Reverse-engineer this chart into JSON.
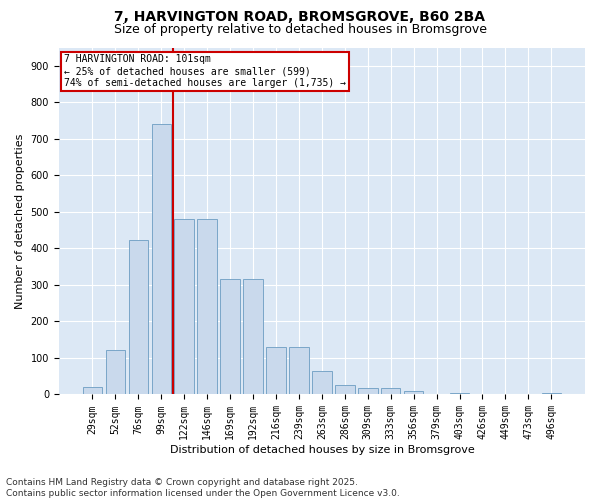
{
  "title_line1": "7, HARVINGTON ROAD, BROMSGROVE, B60 2BA",
  "title_line2": "Size of property relative to detached houses in Bromsgrove",
  "xlabel": "Distribution of detached houses by size in Bromsgrove",
  "ylabel": "Number of detached properties",
  "bar_color": "#c9d9ec",
  "bar_edge_color": "#7aa6c8",
  "background_color": "#dce8f5",
  "annotation_text": "7 HARVINGTON ROAD: 101sqm\n← 25% of detached houses are smaller (599)\n74% of semi-detached houses are larger (1,735) →",
  "vline_color": "#cc0000",
  "annotation_box_color": "white",
  "annotation_box_edge": "#cc0000",
  "categories": [
    "29sqm",
    "52sqm",
    "76sqm",
    "99sqm",
    "122sqm",
    "146sqm",
    "169sqm",
    "192sqm",
    "216sqm",
    "239sqm",
    "263sqm",
    "286sqm",
    "309sqm",
    "333sqm",
    "356sqm",
    "379sqm",
    "403sqm",
    "426sqm",
    "449sqm",
    "473sqm",
    "496sqm"
  ],
  "values": [
    20,
    122,
    422,
    740,
    480,
    480,
    315,
    315,
    130,
    130,
    65,
    25,
    18,
    18,
    10,
    0,
    5,
    0,
    0,
    0,
    5
  ],
  "ylim": [
    0,
    950
  ],
  "yticks": [
    0,
    100,
    200,
    300,
    400,
    500,
    600,
    700,
    800,
    900
  ],
  "footer": "Contains HM Land Registry data © Crown copyright and database right 2025.\nContains public sector information licensed under the Open Government Licence v3.0.",
  "title_fontsize": 10,
  "subtitle_fontsize": 9,
  "footer_fontsize": 6.5,
  "tick_fontsize": 7,
  "ylabel_fontsize": 8,
  "xlabel_fontsize": 8,
  "annot_fontsize": 7
}
